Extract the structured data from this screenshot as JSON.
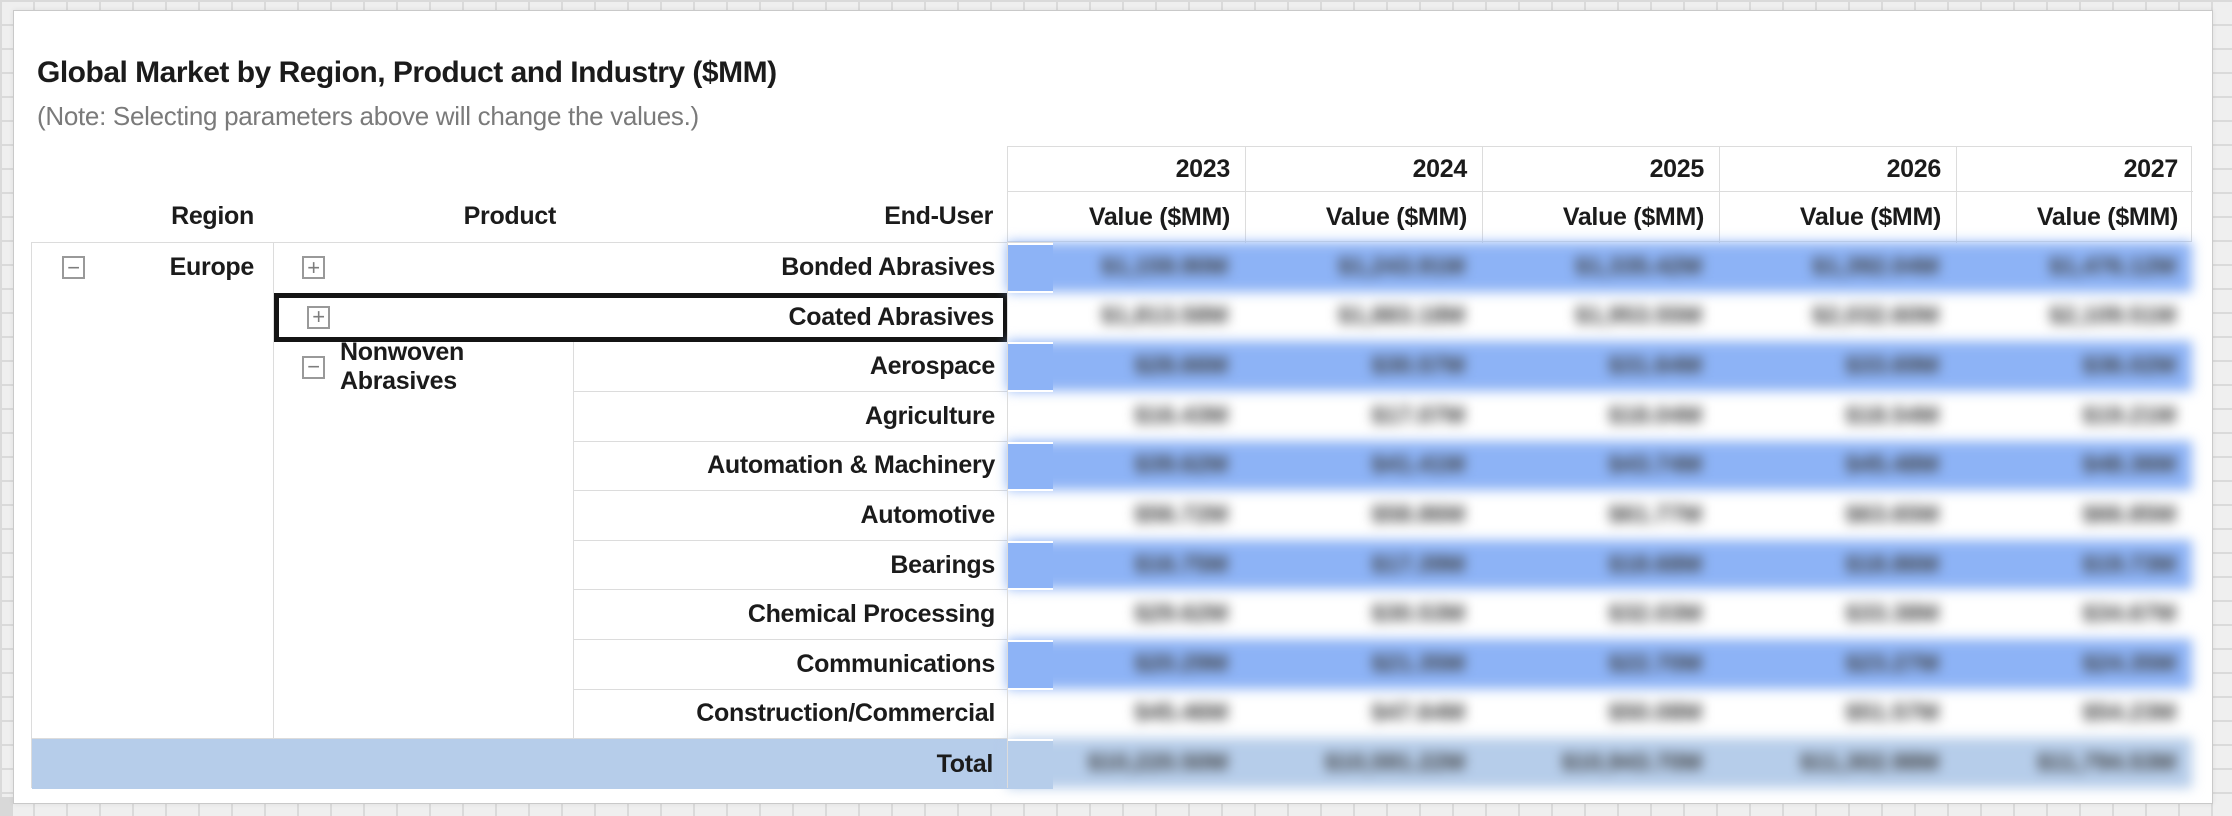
{
  "header": {
    "title": "Global Market by Region, Product and Industry ($MM)",
    "note": "(Note: Selecting parameters above will change the values.)"
  },
  "pivot": {
    "column_headers": {
      "region": "Region",
      "product": "Product",
      "end_user": "End-User"
    },
    "years": [
      "2023",
      "2024",
      "2025",
      "2026",
      "2027"
    ],
    "measure_label": "Value ($MM)",
    "region_label": "Europe",
    "product_group": {
      "label": "Nonwoven Abrasives",
      "state": "expanded"
    },
    "rows": [
      {
        "label": "Bonded Abrasives",
        "level": "product",
        "state": "collapsed",
        "selected": false,
        "values": [
          "$1,159.90M",
          "$1,243.91M",
          "$1,335.42M",
          "$1,392.04M",
          "$1,476.12M"
        ]
      },
      {
        "label": "Coated Abrasives",
        "level": "product",
        "state": "collapsed",
        "selected": true,
        "values": [
          "$1,813.58M",
          "$1,883.18M",
          "$1,953.55M",
          "$2,032.60M",
          "$2,109.51M"
        ]
      },
      {
        "label": "Aerospace",
        "level": "end_user",
        "values": [
          "$28.66M",
          "$30.57M",
          "$31.64M",
          "$33.69M",
          "$36.02M"
        ]
      },
      {
        "label": "Agriculture",
        "level": "end_user",
        "values": [
          "$16.43M",
          "$17.07M",
          "$18.04M",
          "$18.54M",
          "$19.21M"
        ]
      },
      {
        "label": "Automation & Machinery",
        "level": "end_user",
        "values": [
          "$39.62M",
          "$41.41M",
          "$43.74M",
          "$45.48M",
          "$48.36M"
        ]
      },
      {
        "label": "Automotive",
        "level": "end_user",
        "values": [
          "$56.72M",
          "$58.86M",
          "$61.77M",
          "$63.65M",
          "$66.85M"
        ]
      },
      {
        "label": "Bearings",
        "level": "end_user",
        "values": [
          "$16.75M",
          "$17.39M",
          "$18.68M",
          "$18.86M",
          "$19.73M"
        ]
      },
      {
        "label": "Chemical Processing",
        "level": "end_user",
        "values": [
          "$29.62M",
          "$30.53M",
          "$32.03M",
          "$33.38M",
          "$34.67M"
        ]
      },
      {
        "label": "Communications",
        "level": "end_user",
        "values": [
          "$20.29M",
          "$21.35M",
          "$22.70M",
          "$23.27M",
          "$24.35M"
        ]
      },
      {
        "label": "Construction/Commercial",
        "level": "end_user",
        "values": [
          "$45.46M",
          "$47.64M",
          "$50.08M",
          "$51.57M",
          "$54.23M"
        ]
      }
    ],
    "total": {
      "label": "Total",
      "values": [
        "$10,220.50M",
        "$10,591.22M",
        "$10,943.70M",
        "$11,302.98M",
        "$11,794.53M"
      ]
    }
  },
  "icons": {
    "expand": "+",
    "collapse": "−"
  },
  "colors": {
    "band_blue": "#8DB3F6",
    "total_blue": "#B6CDEA",
    "selection_border": "#141414",
    "grid_border": "#DCDCDC",
    "value_text": "#3A3A3A",
    "title_text": "#1B1B1B",
    "note_text": "#7A7A7A"
  },
  "chart_data": {
    "type": "table",
    "title": "Global Market by Region, Product and Industry ($MM)",
    "region": "Europe",
    "columns": [
      "2023 Value ($MM)",
      "2024 Value ($MM)",
      "2025 Value ($MM)",
      "2026 Value ($MM)",
      "2027 Value ($MM)"
    ],
    "rows": [
      {
        "label": "Bonded Abrasives",
        "values": [
          "$1,159.90M",
          "$1,243.91M",
          "$1,335.42M",
          "$1,392.04M",
          "$1,476.12M"
        ]
      },
      {
        "label": "Coated Abrasives",
        "values": [
          "$1,813.58M",
          "$1,883.18M",
          "$1,953.55M",
          "$2,032.60M",
          "$2,109.51M"
        ]
      },
      {
        "label": "Nonwoven Abrasives / Aerospace",
        "values": [
          "$28.66M",
          "$30.57M",
          "$31.64M",
          "$33.69M",
          "$36.02M"
        ]
      },
      {
        "label": "Nonwoven Abrasives / Agriculture",
        "values": [
          "$16.43M",
          "$17.07M",
          "$18.04M",
          "$18.54M",
          "$19.21M"
        ]
      },
      {
        "label": "Nonwoven Abrasives / Automation & Machinery",
        "values": [
          "$39.62M",
          "$41.41M",
          "$43.74M",
          "$45.48M",
          "$48.36M"
        ]
      },
      {
        "label": "Nonwoven Abrasives / Automotive",
        "values": [
          "$56.72M",
          "$58.86M",
          "$61.77M",
          "$63.65M",
          "$66.85M"
        ]
      },
      {
        "label": "Nonwoven Abrasives / Bearings",
        "values": [
          "$16.75M",
          "$17.39M",
          "$18.68M",
          "$18.86M",
          "$19.73M"
        ]
      },
      {
        "label": "Nonwoven Abrasives / Chemical Processing",
        "values": [
          "$29.62M",
          "$30.53M",
          "$32.03M",
          "$33.38M",
          "$34.67M"
        ]
      },
      {
        "label": "Nonwoven Abrasives / Communications",
        "values": [
          "$20.29M",
          "$21.35M",
          "$22.70M",
          "$23.27M",
          "$24.35M"
        ]
      },
      {
        "label": "Nonwoven Abrasives / Construction/Commercial",
        "values": [
          "$45.46M",
          "$47.64M",
          "$50.08M",
          "$51.57M",
          "$54.23M"
        ]
      },
      {
        "label": "Total",
        "values": [
          "$10,220.50M",
          "$10,591.22M",
          "$10,943.70M",
          "$11,302.98M",
          "$11,794.53M"
        ]
      }
    ]
  }
}
